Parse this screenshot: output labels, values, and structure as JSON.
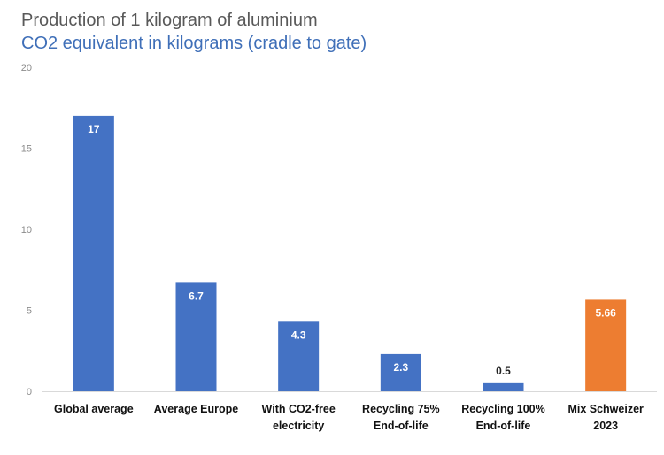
{
  "chart_data": {
    "type": "bar",
    "title": "Production of 1 kilogram of aluminium",
    "subtitle": "CO2 equivalent in kilograms (cradle to gate)",
    "categories": [
      [
        "Global average"
      ],
      [
        "Average Europe"
      ],
      [
        "With CO2-free",
        "electricity"
      ],
      [
        "Recycling 75%",
        "End-of-life"
      ],
      [
        "Recycling 100%",
        "End-of-life"
      ],
      [
        "Mix Schweizer",
        "2023"
      ]
    ],
    "values": [
      17,
      6.7,
      4.3,
      2.3,
      0.5,
      5.66
    ],
    "value_labels": [
      "17",
      "6.7",
      "4.3",
      "2.3",
      "0.5",
      "5.66"
    ],
    "colors": [
      "#4472c4",
      "#4472c4",
      "#4472c4",
      "#4472c4",
      "#4472c4",
      "#ed7d31"
    ],
    "ylim": [
      0,
      20
    ],
    "yticks": [
      0,
      5,
      10,
      15,
      20
    ],
    "grid": false,
    "legend": false
  }
}
